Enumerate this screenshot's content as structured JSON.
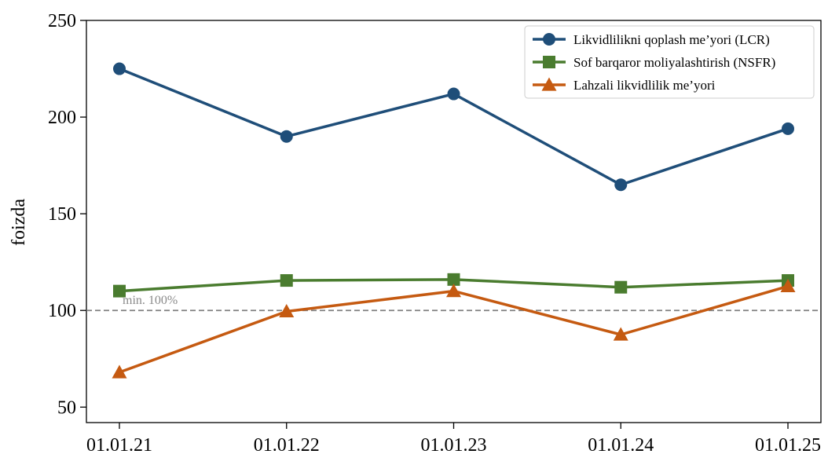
{
  "chart_data": {
    "type": "line",
    "ylabel": "foizda",
    "xlabel": "",
    "categories": [
      "01.01.21",
      "01.01.22",
      "01.01.23",
      "01.01.24",
      "01.01.25"
    ],
    "ylim": [
      42,
      250
    ],
    "yticks": [
      50,
      100,
      150,
      200,
      250
    ],
    "grid": false,
    "legend_position": "top-right",
    "reference_line": {
      "value": 100,
      "label": "min. 100%",
      "color": "#808080",
      "style": "dashed"
    },
    "series": [
      {
        "name": "Likvidlilikni qoplash me’yori (LCR)",
        "marker": "circle",
        "color": "#1f4e79",
        "values": [
          225,
          190,
          212,
          165,
          194
        ]
      },
      {
        "name": "Sof barqaror moliyalashtirish (NSFR)",
        "marker": "square",
        "color": "#4a7c2f",
        "values": [
          110,
          115.5,
          116,
          112,
          115.5
        ]
      },
      {
        "name": "Lahzali likvidlilik me’yori",
        "marker": "triangle",
        "color": "#c55a11",
        "values": [
          68,
          99.5,
          110,
          87.5,
          112.5
        ]
      }
    ]
  }
}
